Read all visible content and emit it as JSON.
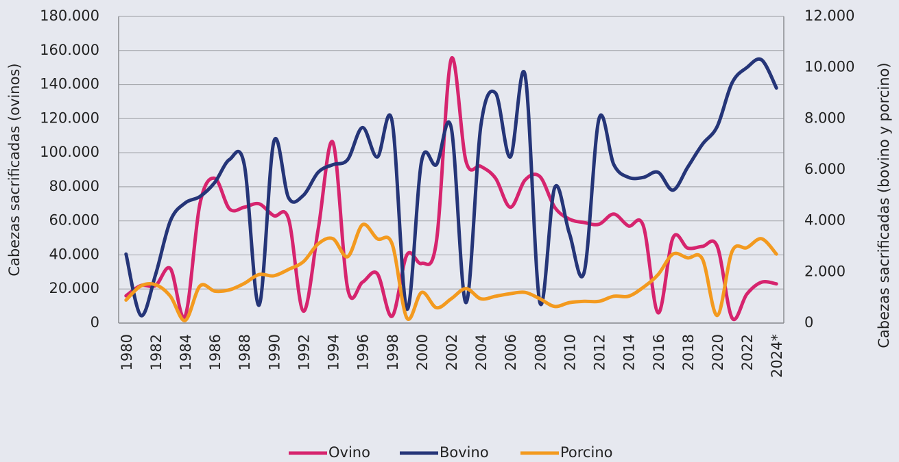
{
  "chart_data": {
    "type": "line",
    "categories": [
      "1980",
      null,
      "1982",
      null,
      "1984",
      null,
      "1986",
      null,
      "1988",
      null,
      "1990",
      null,
      "1992",
      null,
      "1994",
      null,
      "1996",
      null,
      "1998",
      null,
      "2000",
      null,
      "2002",
      null,
      "2004",
      null,
      "2006",
      null,
      "2008",
      null,
      "2010",
      null,
      "2012",
      null,
      "2014",
      null,
      "2016",
      null,
      "2018",
      null,
      "2020",
      null,
      "2022",
      null,
      "2024*"
    ],
    "series": [
      {
        "name": "Ovino",
        "color": "#d6246e",
        "values": [
          16000,
          22000,
          22000,
          32000,
          4000,
          70000,
          85000,
          67000,
          68000,
          70000,
          63000,
          61000,
          7000,
          55000,
          106000,
          20000,
          24000,
          29000,
          4000,
          40000,
          35000,
          48000,
          155000,
          95000,
          92000,
          85000,
          68000,
          84000,
          86000,
          68000,
          61000,
          59000,
          58000,
          64000,
          57000,
          57000,
          6000,
          50000,
          44000,
          45000,
          45000,
          3000,
          17000,
          24000,
          23000
        ]
      },
      {
        "name": "Bovino",
        "color": "#253578",
        "axis": "y2",
        "values": [
          2700,
          300,
          1900,
          4000,
          4700,
          4950,
          5500,
          6400,
          6200,
          700,
          7100,
          4900,
          5000,
          5900,
          6200,
          6400,
          7650,
          6500,
          7900,
          550,
          6350,
          6200,
          7650,
          800,
          7700,
          9000,
          6500,
          9700,
          800,
          5300,
          3500,
          2000,
          8000,
          6200,
          5700,
          5700,
          5900,
          5200,
          6100,
          7000,
          7700,
          9400,
          10000,
          10300,
          9200
        ]
      },
      {
        "name": "Porcino",
        "color": "#f39a1f",
        "axis": "y2",
        "values": [
          900,
          1450,
          1500,
          1050,
          100,
          1450,
          1250,
          1300,
          1550,
          1900,
          1850,
          2100,
          2400,
          3100,
          3300,
          2600,
          3850,
          3300,
          3100,
          200,
          1200,
          600,
          950,
          1350,
          950,
          1050,
          1150,
          1200,
          950,
          650,
          800,
          850,
          850,
          1050,
          1050,
          1400,
          1900,
          2700,
          2550,
          2500,
          300,
          2800,
          2950,
          3300,
          2700
        ]
      }
    ],
    "ylabel": "Cabezas sacrificadas (ovinos)",
    "y2label": "Cabezas sacrificadas (bovino y porcino)",
    "ylim": [
      0,
      180000
    ],
    "yticks": [
      0,
      {
        "value": 20000,
        "label": "20.000"
      },
      {
        "value": 40000,
        "label": "40.000"
      },
      {
        "value": 60000,
        "label": "60.000"
      },
      {
        "value": 80000,
        "label": "80.000"
      },
      {
        "value": 100000,
        "label": "100.000"
      },
      {
        "value": 120000,
        "label": "120.000"
      },
      {
        "value": 140000,
        "label": "140.000"
      },
      {
        "value": 160000,
        "label": "160.000"
      },
      {
        "value": 180000,
        "label": "180.000"
      }
    ],
    "y2lim": [
      0,
      12000
    ],
    "y2ticks": [
      0,
      {
        "value": 2000,
        "label": "2.000"
      },
      {
        "value": 4000,
        "label": "4.000"
      },
      {
        "value": 6000,
        "label": "6.000"
      },
      {
        "value": 8000,
        "label": "8.000"
      },
      {
        "value": 10000,
        "label": "10.000"
      },
      {
        "value": 12000,
        "label": "12.000"
      }
    ],
    "grid": true,
    "legend": "bottom"
  }
}
